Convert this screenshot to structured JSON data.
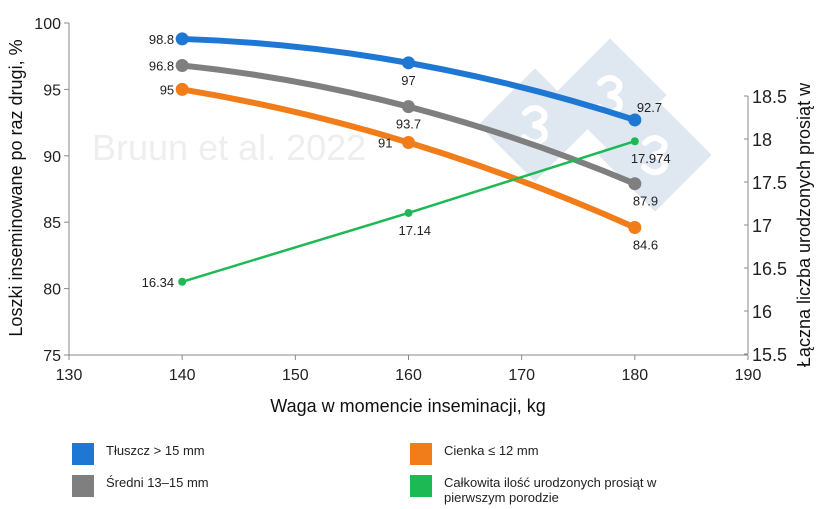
{
  "chart_data": {
    "type": "line",
    "xlabel": "Waga w momencie inseminacji, kg",
    "ylabel": "Loszki inseminowane po raz drugi, %",
    "y2label": "Łączna liczba urodzonych prosiąt w",
    "xlim": [
      130,
      190
    ],
    "ylim": [
      75,
      100
    ],
    "y2lim": [
      15.5,
      18.5
    ],
    "xticks": [
      130,
      140,
      150,
      160,
      170,
      180,
      190
    ],
    "yticks": [
      75,
      80,
      85,
      90,
      95,
      100
    ],
    "y2ticks": [
      15.5,
      16,
      16.5,
      17,
      17.5,
      18,
      18.5
    ],
    "watermark": "Bruun et al. 2022",
    "series": [
      {
        "name": "Tłuszcz > 15 mm",
        "color": "#1f77d4",
        "axis": "left",
        "x": [
          140,
          160,
          180
        ],
        "values": [
          98.8,
          97,
          92.7
        ],
        "labels": [
          "98.8",
          "97",
          "92.7"
        ]
      },
      {
        "name": "Średni 13–15 mm",
        "color": "#7f7f7f",
        "axis": "left",
        "x": [
          140,
          160,
          180
        ],
        "values": [
          96.8,
          93.7,
          87.9
        ],
        "labels": [
          "96.8",
          "93.7",
          "87.9"
        ]
      },
      {
        "name": "Cienka ≤ 12 mm",
        "color": "#f07c1a",
        "axis": "left",
        "x": [
          140,
          160,
          180
        ],
        "values": [
          95,
          91,
          84.6
        ],
        "labels": [
          "95",
          "91",
          "84.6"
        ]
      },
      {
        "name": "Całkowita ilość urodzonych prosiąt w pierwszym porodzie",
        "color": "#1db954",
        "axis": "right",
        "x": [
          140,
          160,
          180
        ],
        "values": [
          16.34,
          17.14,
          17.974
        ],
        "labels": [
          "16.34",
          "17.14",
          "17.974"
        ]
      }
    ],
    "legend_position": "bottom"
  }
}
